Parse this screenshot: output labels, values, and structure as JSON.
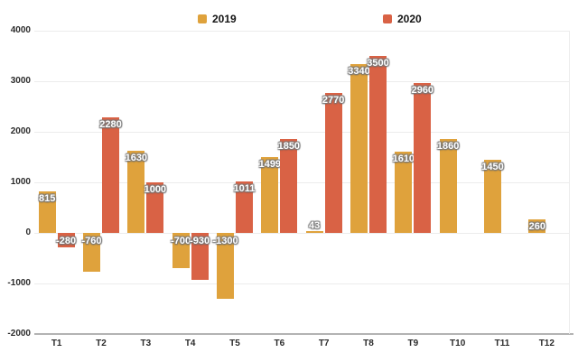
{
  "chart_data": {
    "type": "bar",
    "title": "",
    "xlabel": "",
    "ylabel": "",
    "categories": [
      "T1",
      "T2",
      "T3",
      "T4",
      "T5",
      "T6",
      "T7",
      "T8",
      "T9",
      "T10",
      "T11",
      "T12"
    ],
    "series": [
      {
        "name": "2019",
        "color": "#DFA23C",
        "values": [
          815,
          -760,
          1630,
          -700,
          -1300,
          1499,
          43,
          3340,
          1610,
          1860,
          1450,
          260
        ]
      },
      {
        "name": "2020",
        "color": "#D96245",
        "values": [
          -280,
          2280,
          1000,
          -930,
          1011,
          1850,
          2770,
          3500,
          2960,
          null,
          null,
          null
        ]
      }
    ],
    "ylim": [
      -2000,
      4000
    ],
    "yticks": [
      4000,
      3000,
      2000,
      1000,
      0,
      -1000,
      -2000
    ],
    "grid": "horizontal",
    "legend_position": "top",
    "bar_labels_visible": true,
    "label_text_color": "#ffffff",
    "axis_text_color": "#2b2b2b",
    "gridline_color": "#ececec",
    "bottom_axis_color": "#b3b3b3"
  }
}
